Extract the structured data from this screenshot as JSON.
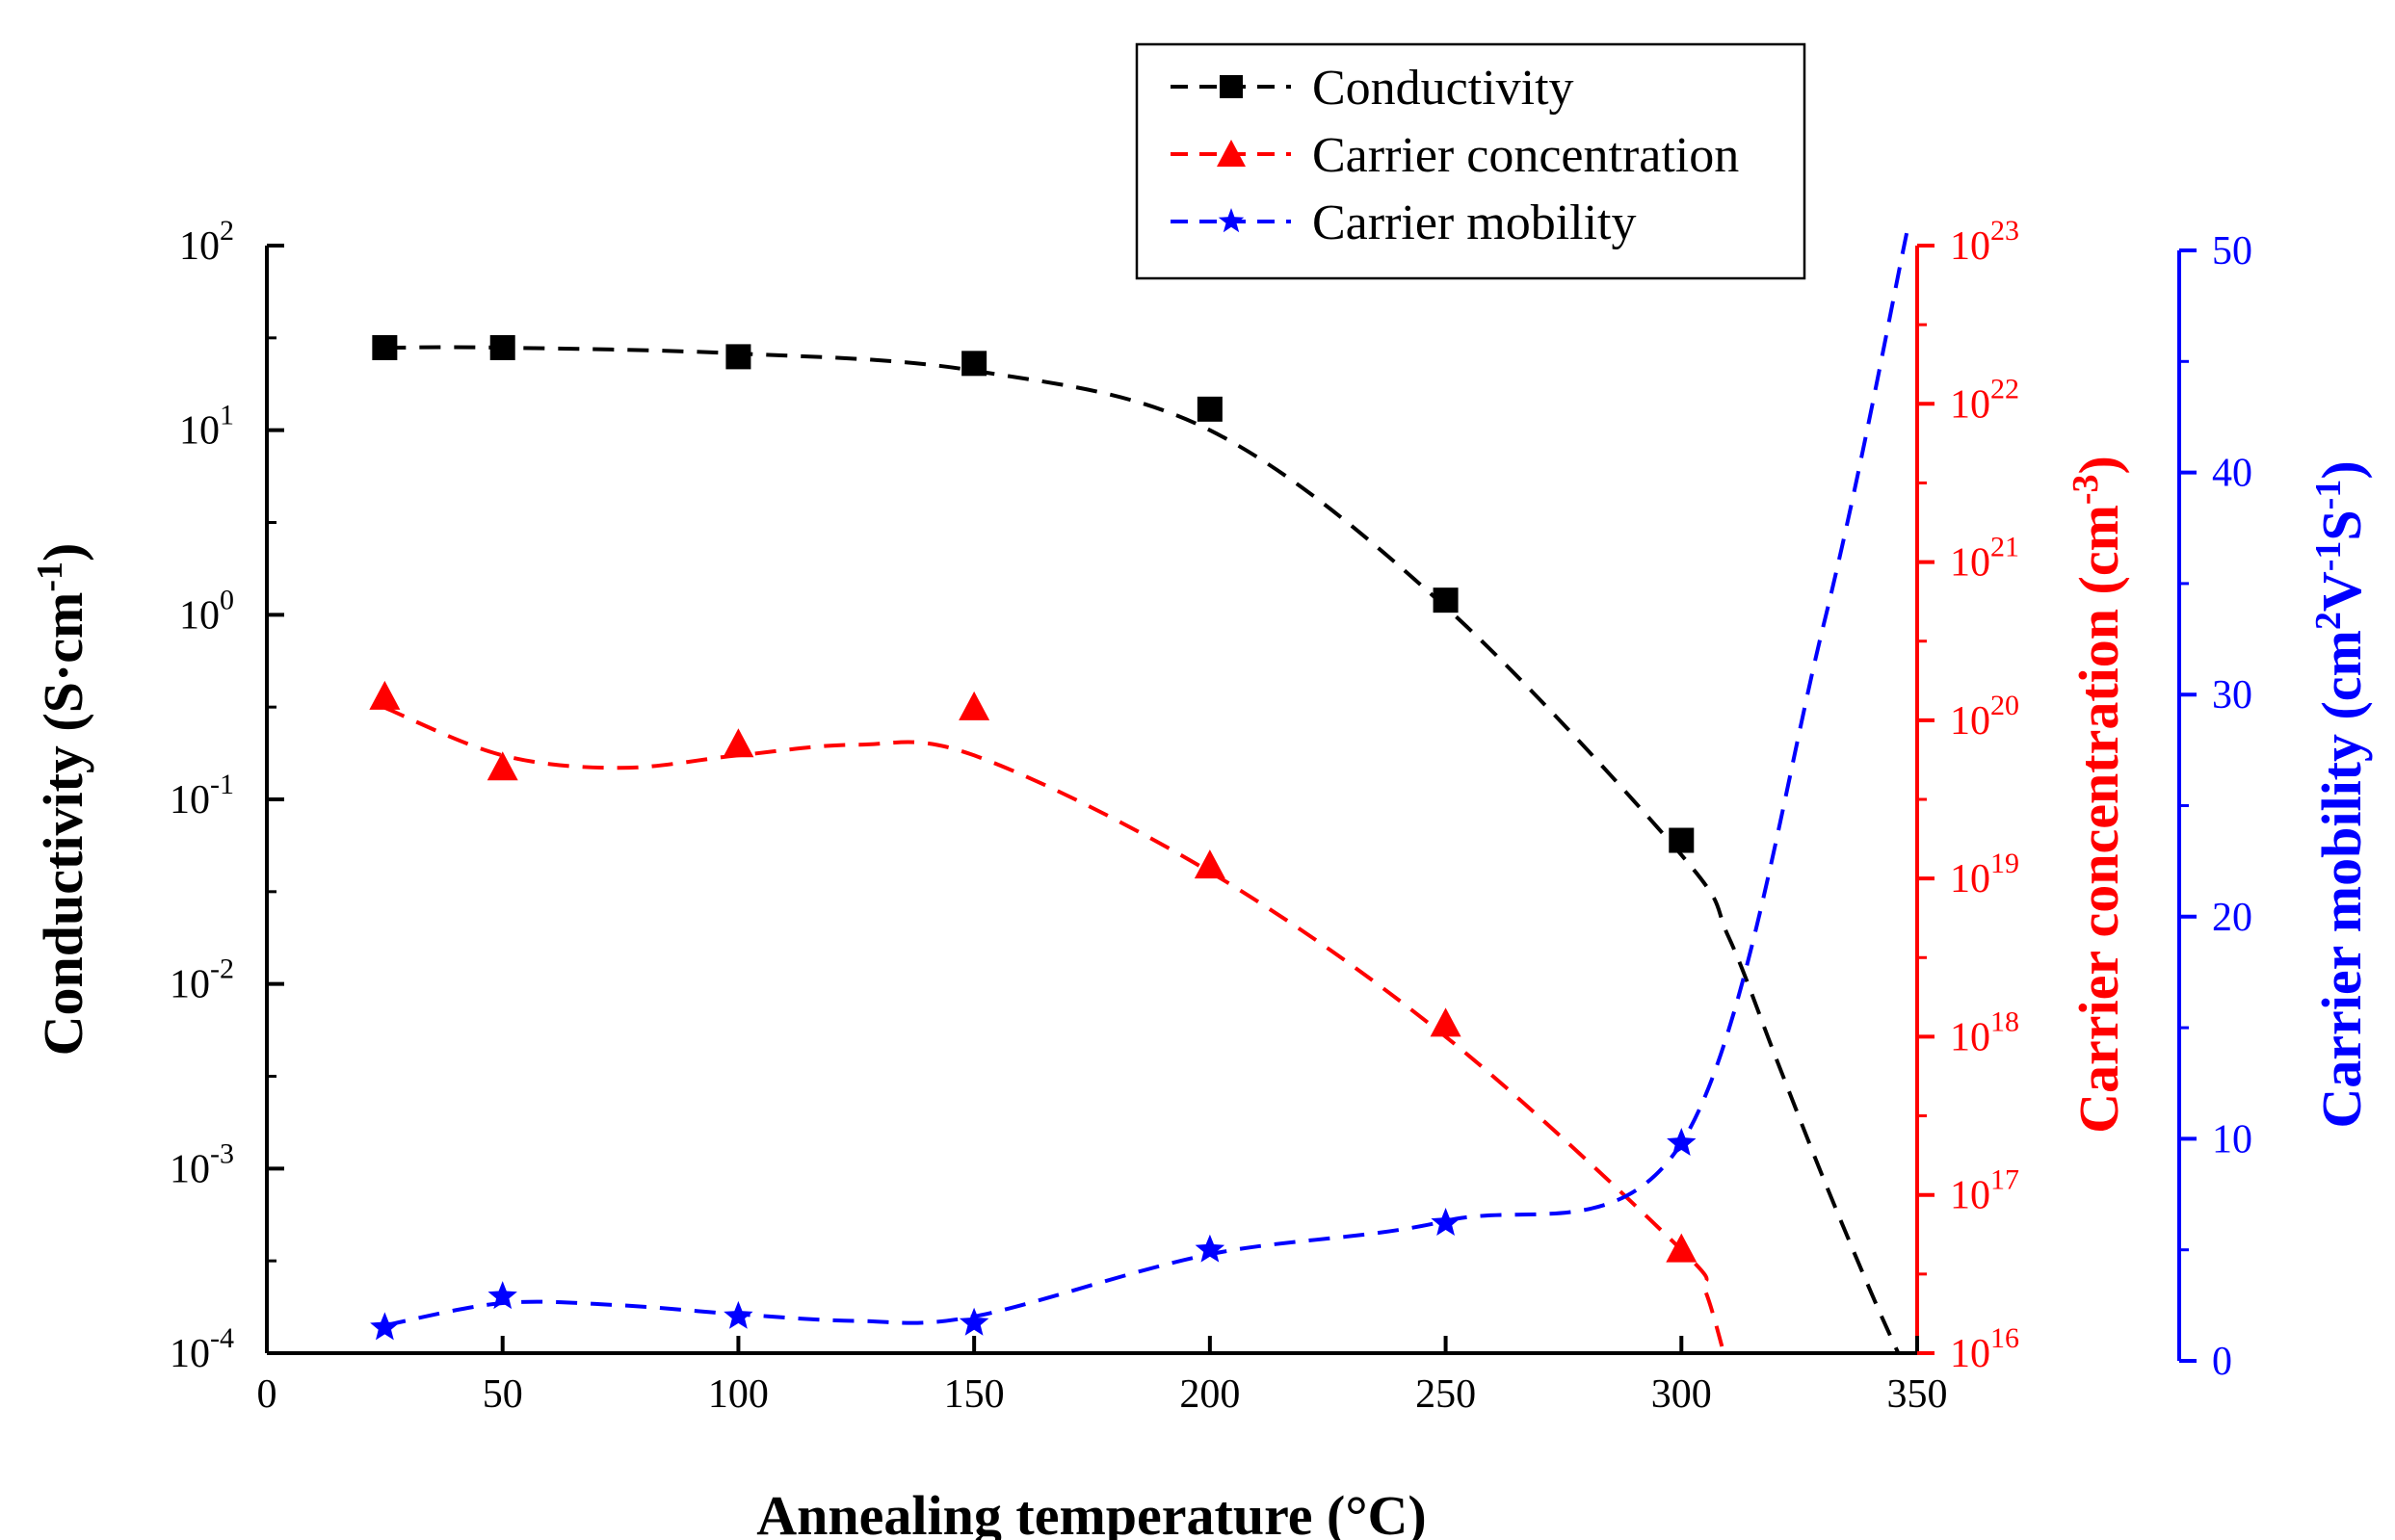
{
  "chart_data": {
    "type": "line",
    "xlabel": "Annealing temperature (°C)",
    "x_ticks": [
      0,
      50,
      100,
      150,
      200,
      250,
      300,
      350
    ],
    "xlim": [
      0,
      350
    ],
    "axes": {
      "left": {
        "label": {
          "main": "Conductivity (S·cm",
          "sup": "-1",
          "tail": ")"
        },
        "scale": "log",
        "ylim": [
          0.0001,
          100
        ],
        "ticks": [
          {
            "base": "10",
            "exp": "-4"
          },
          {
            "base": "10",
            "exp": "-3"
          },
          {
            "base": "10",
            "exp": "-2"
          },
          {
            "base": "10",
            "exp": "-1"
          },
          {
            "base": "10",
            "exp": "0"
          },
          {
            "base": "10",
            "exp": "1"
          },
          {
            "base": "10",
            "exp": "2"
          }
        ],
        "color": "#000000"
      },
      "right1": {
        "label": {
          "main": "Carrier concentration (cm",
          "sup": "-3",
          "tail": ")"
        },
        "scale": "log",
        "ylim": [
          1e+16,
          1e+23
        ],
        "ticks": [
          {
            "base": "10",
            "exp": "16"
          },
          {
            "base": "10",
            "exp": "17"
          },
          {
            "base": "10",
            "exp": "18"
          },
          {
            "base": "10",
            "exp": "19"
          },
          {
            "base": "10",
            "exp": "20"
          },
          {
            "base": "10",
            "exp": "21"
          },
          {
            "base": "10",
            "exp": "22"
          },
          {
            "base": "10",
            "exp": "23"
          }
        ],
        "color": "#ff0000"
      },
      "right2": {
        "label": {
          "p1": "Carrier mobility (cm",
          "s1": "2",
          "p2": "V",
          "s2": "-1",
          "p3": "S",
          "s3": "-1",
          "p4": ")"
        },
        "scale": "linear",
        "ylim": [
          0,
          50
        ],
        "ticks": [
          "0",
          "10",
          "20",
          "30",
          "40",
          "50"
        ],
        "color": "#0000ff"
      }
    },
    "series": [
      {
        "name": "Conductivity",
        "axis": "left",
        "color": "#000000",
        "marker": "square",
        "x": [
          25,
          50,
          100,
          150,
          200,
          250,
          300
        ],
        "values": [
          28,
          28,
          25,
          23,
          13,
          1.2,
          0.06
        ],
        "fit_x": [
          25,
          50,
          100,
          150,
          200,
          250,
          300,
          310,
          320,
          330,
          340,
          346
        ],
        "fit_values": [
          28,
          28,
          26,
          21,
          10,
          1.1,
          0.05,
          0.018,
          0.004,
          0.0009,
          0.00022,
          0.0001
        ]
      },
      {
        "name": "Carrier concentration",
        "axis": "right1",
        "color": "#ff0000",
        "marker": "triangle",
        "x": [
          25,
          50,
          100,
          150,
          200,
          250,
          300
        ],
        "values": [
          1.4e+20,
          5e+19,
          7e+19,
          1.2e+20,
          1.2e+19,
          1.2e+18,
          4.5e+16
        ],
        "fit_x": [
          25,
          50,
          75,
          100,
          125,
          150,
          200,
          250,
          300,
          305,
          309
        ],
        "fit_values": [
          1.2e+20,
          6e+19,
          5e+19,
          6e+19,
          7e+19,
          6e+19,
          1.1e+19,
          1e+18,
          4.5e+16,
          2.5e+16,
          1e+16
        ]
      },
      {
        "name": "Carrier mobility",
        "axis": "right2",
        "color": "#0000ff",
        "marker": "star",
        "x": [
          25,
          50,
          100,
          150,
          200,
          250,
          300
        ],
        "values": [
          1.5,
          2.9,
          2.0,
          1.7,
          5.0,
          6.2,
          9.8
        ],
        "fit_x": [
          25,
          50,
          75,
          100,
          125,
          150,
          200,
          250,
          300,
          330,
          348
        ],
        "fit_values": [
          1.6,
          2.6,
          2.5,
          2.1,
          1.8,
          2.0,
          4.8,
          6.3,
          9.8,
          33,
          51
        ]
      }
    ],
    "legend": {
      "position": "top-center"
    }
  }
}
